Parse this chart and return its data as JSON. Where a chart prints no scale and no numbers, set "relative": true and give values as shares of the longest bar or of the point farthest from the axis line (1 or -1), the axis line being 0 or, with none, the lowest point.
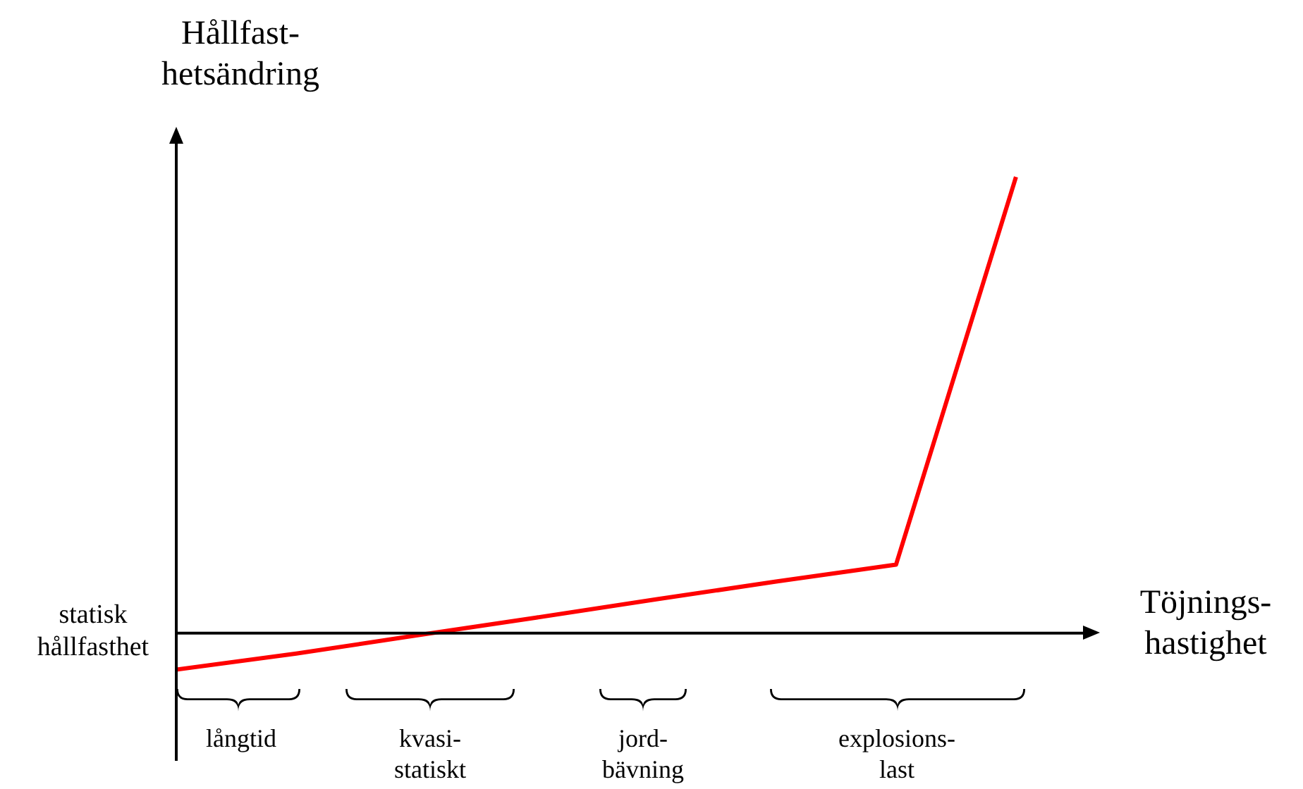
{
  "chart_data": {
    "type": "line",
    "relative": true,
    "ylabel": "Hållfast-\nhetsändring",
    "xlabel": "Töjnings-\nhastighet",
    "categories": [
      null,
      null,
      null,
      null,
      null,
      null,
      null,
      null
    ],
    "series": [
      {
        "color": "#ff0000",
        "values": [
          -0.08,
          -0.045,
          -0.005,
          0.034,
          0.074,
          0.113,
          0.15,
          1
        ]
      }
    ],
    "annotations": [
      "statisk\nhållfasthet",
      "långtid",
      "kvasi-\nstatiskt",
      "jord-\nbävning",
      "explosions-\nlast"
    ],
    "marker": "none",
    "legend": false
  }
}
